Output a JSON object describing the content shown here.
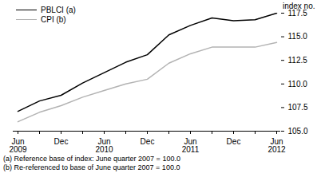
{
  "chart_data": {
    "type": "line",
    "categories": [
      "Jun\n2009",
      null,
      "Dec",
      null,
      "Jun\n2010",
      null,
      "Dec",
      null,
      "Jun\n2011",
      null,
      "Dec",
      null,
      "Jun\n2012"
    ],
    "series": [
      {
        "name": "PBLCI (a)",
        "color": "#000000",
        "values": [
          107.1,
          108.2,
          108.8,
          110.1,
          111.2,
          112.3,
          113.1,
          115.2,
          116.2,
          117.0,
          116.7,
          116.8,
          117.5
        ]
      },
      {
        "name": "CPI (b)",
        "color": "#b3b3b3",
        "values": [
          106.0,
          107.0,
          107.7,
          108.6,
          109.3,
          110.0,
          110.5,
          112.2,
          113.2,
          113.9,
          113.9,
          113.9,
          114.4
        ]
      }
    ],
    "y_label": "index no.",
    "ylim": [
      105,
      117.5
    ],
    "yticks": [
      {
        "value": 105,
        "label": "105.0"
      },
      107.5,
      {
        "value": 110,
        "label": "110.0"
      },
      112.5,
      {
        "value": 115,
        "label": "115.0"
      },
      117.5
    ],
    "grid": false,
    "legend": "top-left",
    "annotations": [
      "(a) Reference base of index: June quarter 2007 = 100.0",
      "(b) Re-referenced to base of June quarter 2007 = 100.0"
    ]
  }
}
